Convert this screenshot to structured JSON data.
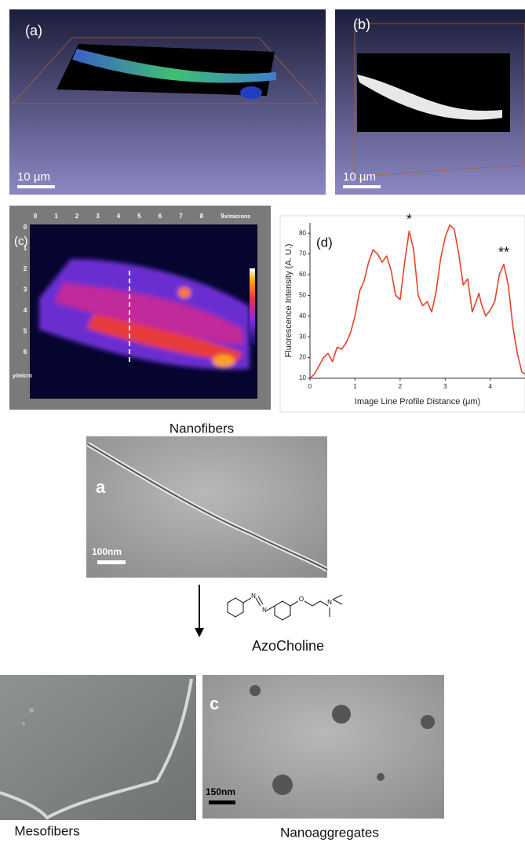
{
  "panels": {
    "a": {
      "label": "(a)",
      "scale": "10 µm"
    },
    "b": {
      "label": "(b)",
      "scale": "10 µm"
    },
    "c": {
      "label": "(c)",
      "xticks": [
        0,
        1,
        2,
        3,
        4,
        5,
        6,
        7,
        8,
        9
      ],
      "xunit": "x/microns",
      "yticks": [
        0,
        1,
        2,
        3,
        4,
        5,
        6
      ],
      "yunit": "y/micro"
    },
    "nanofibers": {
      "title": "Nanofibers",
      "label": "a",
      "scale": "100nm"
    },
    "molecule": {
      "name": "AzoCholine",
      "atoms": [
        "N",
        "N",
        "O",
        "N"
      ]
    },
    "mesofibers": {
      "title": "Mesofibers"
    },
    "nanoaggregates": {
      "title": "Nanoaggregates",
      "label": "c",
      "scale": "150nm"
    }
  },
  "chart_data": {
    "type": "line",
    "title": "(d)",
    "x_label": "Image Line Profile Distance (μm)",
    "y_label": "Fluorescence Intensity (A. U.)",
    "x": [
      0,
      0.1,
      0.2,
      0.3,
      0.4,
      0.5,
      0.6,
      0.7,
      0.8,
      0.9,
      1.0,
      1.1,
      1.2,
      1.3,
      1.4,
      1.5,
      1.6,
      1.7,
      1.8,
      1.9,
      2.0,
      2.1,
      2.2,
      2.3,
      2.4,
      2.5,
      2.6,
      2.7,
      2.8,
      2.9,
      3.0,
      3.1,
      3.2,
      3.3,
      3.4,
      3.5,
      3.6,
      3.7,
      3.75,
      3.8,
      3.9,
      4.0,
      4.1,
      4.2,
      4.3,
      4.4,
      4.5,
      4.6,
      4.7,
      4.77
    ],
    "series": [
      {
        "color": "#e8412a",
        "values": [
          10,
          12,
          16,
          20,
          22,
          18,
          25,
          24,
          27,
          32,
          40,
          52,
          57,
          66,
          72,
          70,
          66,
          69,
          62,
          50,
          48,
          66,
          81,
          72,
          50,
          45,
          47,
          42,
          52,
          68,
          78,
          84,
          82,
          70,
          55,
          58,
          42,
          48,
          51,
          46,
          40,
          43,
          47,
          60,
          65,
          55,
          35,
          22,
          13,
          12
        ]
      }
    ],
    "annotations": [
      {
        "text": "*",
        "x": 2.2,
        "y": 81
      },
      {
        "text": "**",
        "x": 4.3,
        "y": 65
      }
    ],
    "xlim": [
      0,
      4.77
    ],
    "ylim": [
      10,
      85
    ],
    "xticks": [
      0,
      1,
      2,
      3,
      4
    ],
    "yticks": [
      10,
      20,
      30,
      40,
      50,
      60,
      70,
      80
    ],
    "grid": false
  }
}
